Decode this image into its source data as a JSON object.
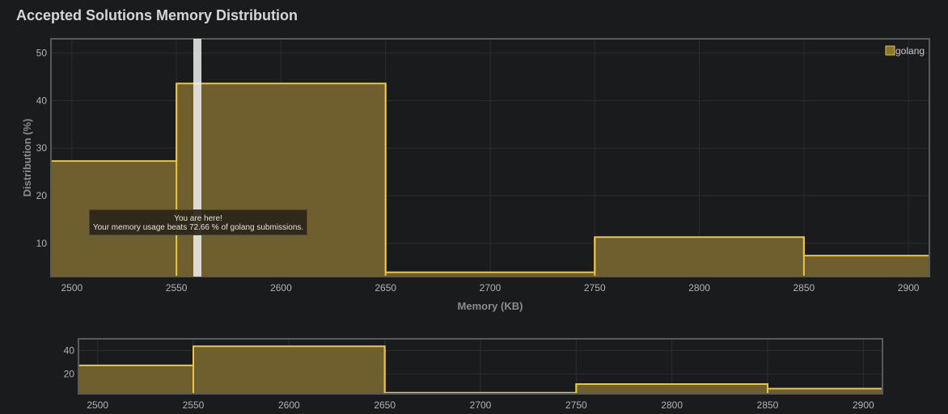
{
  "title": "Accepted Solutions Memory Distribution",
  "tooltip": {
    "line1": "You are here!",
    "line2": "Your memory usage beats 72.66 % of golang submissions."
  },
  "colors": {
    "background": "#1a1b1d",
    "bar_fill": "#6f5f2f",
    "bar_stroke": "#e9c446",
    "grid": "#2c2d30",
    "axis": "#5a5a5a",
    "marker": "#f0f0f0"
  },
  "chart_data": [
    {
      "type": "bar",
      "role": "main",
      "xlabel": "Memory (KB)",
      "ylabel": "Distribution (%)",
      "xlim": [
        2490,
        2910
      ],
      "ylim": [
        3,
        53
      ],
      "x_ticks": [
        2500,
        2550,
        2600,
        2650,
        2700,
        2750,
        2800,
        2850,
        2900
      ],
      "y_ticks": [
        10,
        20,
        30,
        40,
        50
      ],
      "grid": true,
      "legend_position": "top-right",
      "series": [
        {
          "name": "golang",
          "bins": [
            {
              "x0": 2490,
              "x1": 2550,
              "value": 27.3
            },
            {
              "x0": 2550,
              "x1": 2650,
              "value": 43.6
            },
            {
              "x0": 2650,
              "x1": 2750,
              "value": 3.9
            },
            {
              "x0": 2750,
              "x1": 2850,
              "value": 11.3
            },
            {
              "x0": 2850,
              "x1": 2910,
              "value": 7.4
            }
          ]
        }
      ],
      "marker_x": 2560
    },
    {
      "type": "bar",
      "role": "navigator",
      "xlim": [
        2490,
        2910
      ],
      "ylim": [
        3,
        50
      ],
      "x_ticks": [
        2500,
        2550,
        2600,
        2650,
        2700,
        2750,
        2800,
        2850,
        2900
      ],
      "y_ticks": [
        20,
        40
      ],
      "grid": true,
      "series": [
        {
          "bins": [
            {
              "x0": 2490,
              "x1": 2550,
              "value": 27.3
            },
            {
              "x0": 2550,
              "x1": 2650,
              "value": 43.6
            },
            {
              "x0": 2650,
              "x1": 2750,
              "value": 3.9
            },
            {
              "x0": 2750,
              "x1": 2850,
              "value": 11.3
            },
            {
              "x0": 2850,
              "x1": 2910,
              "value": 7.4
            }
          ]
        }
      ]
    }
  ]
}
